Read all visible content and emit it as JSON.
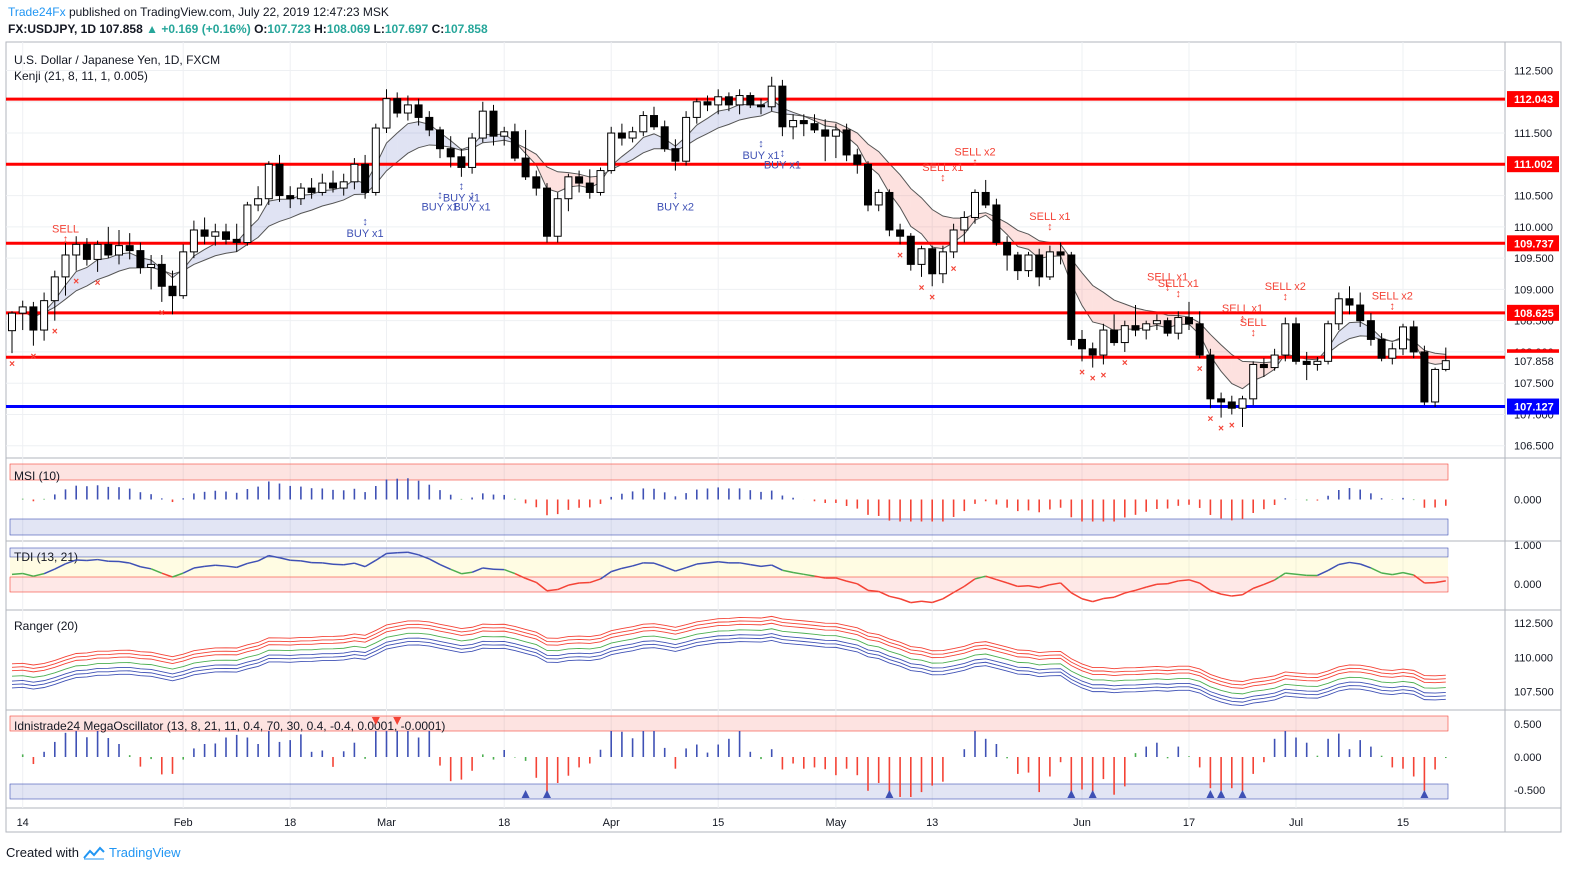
{
  "header": {
    "publisher": "Trade24Fx",
    "published_text": "published on TradingView.com, July 22, 2019 12:47:23 MSK",
    "symbol": "FX:USDJPY, 1D",
    "last": "107.858",
    "change": "▲ +0.169 (+0.16%)",
    "o_label": "O:",
    "o": "107.723",
    "h_label": "H:",
    "h": "108.069",
    "l_label": "L:",
    "l": "107.697",
    "c_label": "C:",
    "c": "107.858"
  },
  "footer": {
    "created_with": "Created with",
    "brand": "TradingView"
  },
  "colors": {
    "up": "#ffffff",
    "down": "#000000",
    "level": "#ff0000",
    "support": "#0000ff",
    "buy": "#3f51b5",
    "sell": "#f44336"
  },
  "chart_data": {
    "type": "candlestick",
    "title": "U.S. Dollar / Japanese Yen, 1D, FXCM",
    "indicator": "Kenji (21, 8, 11, 1, 0.005)",
    "ylim": [
      106.4,
      112.7
    ],
    "y_ticks": [
      "112.500",
      "112.000",
      "111.500",
      "111.000",
      "110.500",
      "110.000",
      "109.500",
      "109.000",
      "108.500",
      "108.000",
      "107.500",
      "107.000",
      "106.500"
    ],
    "x_ticks": [
      {
        "i": 1,
        "label": "14"
      },
      {
        "i": 16,
        "label": "Feb"
      },
      {
        "i": 26,
        "label": "18"
      },
      {
        "i": 35,
        "label": "Mar"
      },
      {
        "i": 46,
        "label": "18"
      },
      {
        "i": 56,
        "label": "Apr"
      },
      {
        "i": 66,
        "label": "15"
      },
      {
        "i": 77,
        "label": "May"
      },
      {
        "i": 86,
        "label": "13"
      },
      {
        "i": 100,
        "label": "Jun"
      },
      {
        "i": 110,
        "label": "17"
      },
      {
        "i": 120,
        "label": "Jul"
      },
      {
        "i": 130,
        "label": "15"
      }
    ],
    "levels": [
      {
        "value": 112.043,
        "label": "112.043",
        "color": "red"
      },
      {
        "value": 111.002,
        "label": "111.002",
        "color": "red"
      },
      {
        "value": 109.737,
        "label": "109.737",
        "color": "red"
      },
      {
        "value": 108.625,
        "label": "108.625",
        "color": "red"
      },
      {
        "value": 107.915,
        "label": "107.915",
        "color": "red"
      },
      {
        "value": 107.127,
        "label": "107.127",
        "color": "blue"
      }
    ],
    "last_price": {
      "value": 107.858,
      "label": "107.858"
    },
    "signals": [
      {
        "i": 5,
        "text": "SELL",
        "side": "sell",
        "price": 109.72
      },
      {
        "i": 33,
        "text": "BUY x1",
        "side": "buy",
        "price": 110.25
      },
      {
        "i": 40,
        "text": "BUY x1",
        "side": "buy",
        "price": 110.68
      },
      {
        "i": 42,
        "text": "BUY x1",
        "side": "buy",
        "price": 110.82
      },
      {
        "i": 43,
        "text": "BUY x1",
        "side": "buy",
        "price": 110.68
      },
      {
        "i": 62,
        "text": "BUY x2",
        "side": "buy",
        "price": 110.68
      },
      {
        "i": 70,
        "text": "BUY x1",
        "side": "buy",
        "price": 111.5
      },
      {
        "i": 72,
        "text": "BUY x1",
        "side": "buy",
        "price": 111.35
      },
      {
        "i": 87,
        "text": "SELL x1",
        "side": "sell",
        "price": 110.7
      },
      {
        "i": 90,
        "text": "SELL x2",
        "side": "sell",
        "price": 110.95
      },
      {
        "i": 97,
        "text": "SELL x1",
        "side": "sell",
        "price": 109.92
      },
      {
        "i": 108,
        "text": "SELL x1",
        "side": "sell",
        "price": 108.95
      },
      {
        "i": 109,
        "text": "SELL x1",
        "side": "sell",
        "price": 108.85
      },
      {
        "i": 115,
        "text": "SELL x1",
        "side": "sell",
        "price": 108.45
      },
      {
        "i": 116,
        "text": "SELL",
        "side": "sell",
        "price": 108.22
      },
      {
        "i": 119,
        "text": "SELL x2",
        "side": "sell",
        "price": 108.8
      },
      {
        "i": 129,
        "text": "SELL x2",
        "side": "sell",
        "price": 108.65
      }
    ],
    "ohlc": [
      [
        108.34,
        108.65,
        107.98,
        108.62
      ],
      [
        108.62,
        108.82,
        108.35,
        108.72
      ],
      [
        108.72,
        108.8,
        108.1,
        108.35
      ],
      [
        108.35,
        108.95,
        108.18,
        108.82
      ],
      [
        108.82,
        109.3,
        108.5,
        109.2
      ],
      [
        109.2,
        109.75,
        108.9,
        109.55
      ],
      [
        109.55,
        109.85,
        109.3,
        109.72
      ],
      [
        109.72,
        109.82,
        109.38,
        109.48
      ],
      [
        109.48,
        109.78,
        109.28,
        109.72
      ],
      [
        109.72,
        110.0,
        109.5,
        109.55
      ],
      [
        109.55,
        109.95,
        109.4,
        109.7
      ],
      [
        109.7,
        109.9,
        109.48,
        109.62
      ],
      [
        109.62,
        109.75,
        109.25,
        109.35
      ],
      [
        109.35,
        109.55,
        109.0,
        109.4
      ],
      [
        109.4,
        109.55,
        108.8,
        109.05
      ],
      [
        109.05,
        109.3,
        108.6,
        108.9
      ],
      [
        108.9,
        109.72,
        108.85,
        109.6
      ],
      [
        109.6,
        110.1,
        109.5,
        109.95
      ],
      [
        109.95,
        110.15,
        109.72,
        109.85
      ],
      [
        109.85,
        110.05,
        109.7,
        109.92
      ],
      [
        109.92,
        110.05,
        109.72,
        109.8
      ],
      [
        109.8,
        110.05,
        109.6,
        109.75
      ],
      [
        109.75,
        110.4,
        109.7,
        110.35
      ],
      [
        110.35,
        110.65,
        110.25,
        110.45
      ],
      [
        110.45,
        111.05,
        110.35,
        111.0
      ],
      [
        111.0,
        111.15,
        110.4,
        110.5
      ],
      [
        110.5,
        110.65,
        110.3,
        110.45
      ],
      [
        110.45,
        110.7,
        110.35,
        110.62
      ],
      [
        110.62,
        110.78,
        110.45,
        110.55
      ],
      [
        110.55,
        110.85,
        110.5,
        110.7
      ],
      [
        110.7,
        110.9,
        110.55,
        110.62
      ],
      [
        110.62,
        110.85,
        110.5,
        110.72
      ],
      [
        110.72,
        111.1,
        110.6,
        111.0
      ],
      [
        111.0,
        111.15,
        110.45,
        110.55
      ],
      [
        110.55,
        111.65,
        110.5,
        111.58
      ],
      [
        111.58,
        112.2,
        111.5,
        112.05
      ],
      [
        112.05,
        112.15,
        111.75,
        111.82
      ],
      [
        111.82,
        112.1,
        111.7,
        111.95
      ],
      [
        111.95,
        112.05,
        111.62,
        111.75
      ],
      [
        111.75,
        111.85,
        111.45,
        111.55
      ],
      [
        111.55,
        111.6,
        111.1,
        111.25
      ],
      [
        111.25,
        111.45,
        110.95,
        111.12
      ],
      [
        111.12,
        111.25,
        110.8,
        110.95
      ],
      [
        110.95,
        111.5,
        110.85,
        111.42
      ],
      [
        111.42,
        112.0,
        111.35,
        111.85
      ],
      [
        111.85,
        111.95,
        111.3,
        111.45
      ],
      [
        111.45,
        111.6,
        111.3,
        111.52
      ],
      [
        111.52,
        111.65,
        111.05,
        111.1
      ],
      [
        111.1,
        111.55,
        110.75,
        110.8
      ],
      [
        110.8,
        110.9,
        110.5,
        110.62
      ],
      [
        110.62,
        110.7,
        109.75,
        109.85
      ],
      [
        109.85,
        110.55,
        109.75,
        110.45
      ],
      [
        110.45,
        110.85,
        110.25,
        110.8
      ],
      [
        110.8,
        110.9,
        110.55,
        110.7
      ],
      [
        110.7,
        110.92,
        110.45,
        110.55
      ],
      [
        110.55,
        110.95,
        110.5,
        110.9
      ],
      [
        110.9,
        111.6,
        110.85,
        111.5
      ],
      [
        111.5,
        111.65,
        111.3,
        111.42
      ],
      [
        111.42,
        111.6,
        111.35,
        111.52
      ],
      [
        111.52,
        111.85,
        111.45,
        111.78
      ],
      [
        111.78,
        111.92,
        111.55,
        111.6
      ],
      [
        111.6,
        111.7,
        111.2,
        111.25
      ],
      [
        111.25,
        111.4,
        110.9,
        111.05
      ],
      [
        111.05,
        111.85,
        110.98,
        111.75
      ],
      [
        111.75,
        112.05,
        111.65,
        112.0
      ],
      [
        112.0,
        112.1,
        111.85,
        111.95
      ],
      [
        111.95,
        112.2,
        111.8,
        112.08
      ],
      [
        112.08,
        112.15,
        111.85,
        111.95
      ],
      [
        111.95,
        112.2,
        111.8,
        112.1
      ],
      [
        112.1,
        112.15,
        111.9,
        111.95
      ],
      [
        111.95,
        112.05,
        111.8,
        111.92
      ],
      [
        111.92,
        112.4,
        111.85,
        112.25
      ],
      [
        112.25,
        112.35,
        111.45,
        111.6
      ],
      [
        111.6,
        111.8,
        111.4,
        111.7
      ],
      [
        111.7,
        111.8,
        111.45,
        111.65
      ],
      [
        111.65,
        111.8,
        111.5,
        111.55
      ],
      [
        111.55,
        111.72,
        111.05,
        111.45
      ],
      [
        111.45,
        111.65,
        111.1,
        111.55
      ],
      [
        111.55,
        111.65,
        111.05,
        111.15
      ],
      [
        111.15,
        111.25,
        110.85,
        111.0
      ],
      [
        111.0,
        111.05,
        110.25,
        110.35
      ],
      [
        110.35,
        110.6,
        110.25,
        110.55
      ],
      [
        110.55,
        110.6,
        109.85,
        109.95
      ],
      [
        109.95,
        110.05,
        109.72,
        109.85
      ],
      [
        109.85,
        109.9,
        109.3,
        109.4
      ],
      [
        109.4,
        109.7,
        109.2,
        109.65
      ],
      [
        109.65,
        109.7,
        109.05,
        109.25
      ],
      [
        109.25,
        109.7,
        109.1,
        109.6
      ],
      [
        109.6,
        110.05,
        109.5,
        109.95
      ],
      [
        109.95,
        110.25,
        109.75,
        110.15
      ],
      [
        110.15,
        110.6,
        110.05,
        110.55
      ],
      [
        110.55,
        110.75,
        110.3,
        110.35
      ],
      [
        110.35,
        110.45,
        109.7,
        109.75
      ],
      [
        109.75,
        109.85,
        109.3,
        109.55
      ],
      [
        109.55,
        109.6,
        109.15,
        109.3
      ],
      [
        109.3,
        109.6,
        109.2,
        109.55
      ],
      [
        109.55,
        109.65,
        109.05,
        109.2
      ],
      [
        109.2,
        109.7,
        109.15,
        109.6
      ],
      [
        109.6,
        109.75,
        109.4,
        109.55
      ],
      [
        109.55,
        109.6,
        108.1,
        108.2
      ],
      [
        108.2,
        108.35,
        107.85,
        108.05
      ],
      [
        108.05,
        108.15,
        107.75,
        107.95
      ],
      [
        107.95,
        108.45,
        107.8,
        108.35
      ],
      [
        108.35,
        108.6,
        108.1,
        108.15
      ],
      [
        108.15,
        108.5,
        108.0,
        108.42
      ],
      [
        108.42,
        108.75,
        108.25,
        108.35
      ],
      [
        108.35,
        108.5,
        108.2,
        108.45
      ],
      [
        108.45,
        108.6,
        108.35,
        108.5
      ],
      [
        108.5,
        108.55,
        108.25,
        108.3
      ],
      [
        108.3,
        108.65,
        108.2,
        108.55
      ],
      [
        108.55,
        108.8,
        108.35,
        108.45
      ],
      [
        108.45,
        108.65,
        107.9,
        107.95
      ],
      [
        107.95,
        108.05,
        107.1,
        107.25
      ],
      [
        107.25,
        107.35,
        106.95,
        107.2
      ],
      [
        107.2,
        107.3,
        107.0,
        107.1
      ],
      [
        107.1,
        107.3,
        106.8,
        107.25
      ],
      [
        107.25,
        107.85,
        107.15,
        107.8
      ],
      [
        107.8,
        107.9,
        107.6,
        107.75
      ],
      [
        107.75,
        108.05,
        107.7,
        107.95
      ],
      [
        107.95,
        108.55,
        107.85,
        108.45
      ],
      [
        108.45,
        108.55,
        107.8,
        107.85
      ],
      [
        107.85,
        108.0,
        107.55,
        107.8
      ],
      [
        107.8,
        107.92,
        107.7,
        107.85
      ],
      [
        107.85,
        108.5,
        107.8,
        108.45
      ],
      [
        108.45,
        108.95,
        108.35,
        108.85
      ],
      [
        108.85,
        109.05,
        108.6,
        108.75
      ],
      [
        108.75,
        108.95,
        108.4,
        108.5
      ],
      [
        108.5,
        108.62,
        108.1,
        108.2
      ],
      [
        108.2,
        108.3,
        107.85,
        107.9
      ],
      [
        107.9,
        108.15,
        107.8,
        108.05
      ],
      [
        108.05,
        108.45,
        107.95,
        108.4
      ],
      [
        108.4,
        108.5,
        107.9,
        108.0
      ],
      [
        108.0,
        108.1,
        107.15,
        107.2
      ],
      [
        107.2,
        107.75,
        107.12,
        107.72
      ],
      [
        107.72,
        108.07,
        107.69,
        107.86
      ]
    ],
    "panels": [
      {
        "name": "MSI (10)",
        "ticks": [
          "0.000"
        ],
        "type": "histogram"
      },
      {
        "name": "TDI (13, 21)",
        "ticks": [
          "1.000",
          "0.000"
        ],
        "type": "line"
      },
      {
        "name": "Ranger (20)",
        "ticks": [
          "112.500",
          "110.000",
          "107.500"
        ],
        "type": "bands"
      },
      {
        "name": "Idnistrade24 MegaOscillator (13, 8, 21, 11, 0.4, 70, 30, 0.4, -0.4, 0.0001, -0.0001)",
        "ticks": [
          "0.500",
          "0.000",
          "-0.500"
        ],
        "type": "histogram"
      }
    ]
  }
}
